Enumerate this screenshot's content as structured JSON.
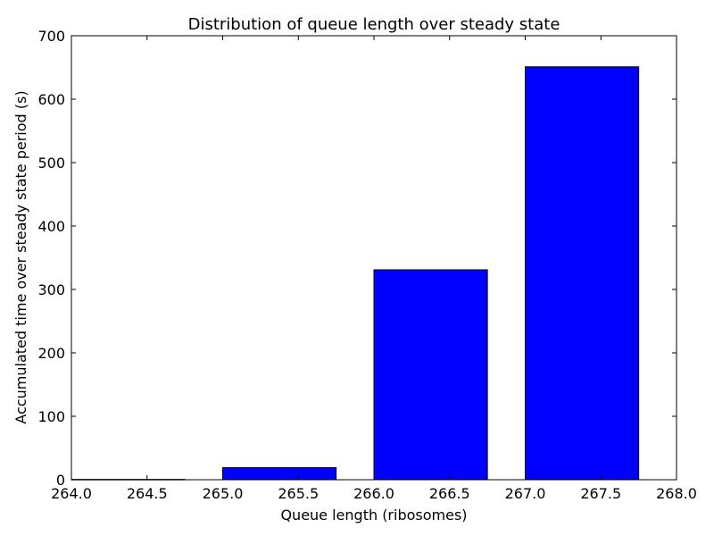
{
  "chart_data": {
    "type": "bar",
    "title": "Distribution of queue length over steady state",
    "xlabel": "Queue length (ribosomes)",
    "ylabel": "Accumulated time over steady state period (s)",
    "xlim": [
      264.0,
      268.0
    ],
    "ylim": [
      0,
      700
    ],
    "x_ticks": [
      "264.0",
      "264.5",
      "265.0",
      "265.5",
      "266.0",
      "266.5",
      "267.0",
      "267.5",
      "268.0"
    ],
    "y_ticks": [
      "0",
      "100",
      "200",
      "300",
      "400",
      "500",
      "600",
      "700"
    ],
    "bar_width": 0.75,
    "bars": [
      {
        "x": 264,
        "value": 0.5
      },
      {
        "x": 265,
        "value": 19
      },
      {
        "x": 266,
        "value": 331
      },
      {
        "x": 267,
        "value": 651
      }
    ],
    "bar_color": "#0000ff",
    "edge_color": "#000000",
    "grid": false,
    "legend": "none"
  }
}
